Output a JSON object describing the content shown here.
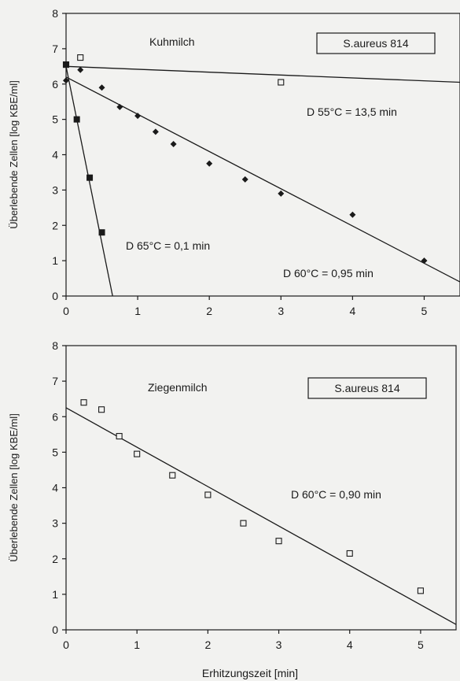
{
  "chart_data": [
    {
      "type": "scatter",
      "panel_label": "Kuhmilch",
      "box_label": "S.aureus 814",
      "xlabel": "",
      "ylabel": "Überlebende Zellen [log KBE/ml]",
      "xlim": [
        0,
        5.5
      ],
      "ylim": [
        0,
        8
      ],
      "xticks": [
        0,
        1,
        2,
        3,
        4,
        5
      ],
      "yticks": [
        0,
        1,
        2,
        3,
        4,
        5,
        6,
        7,
        8
      ],
      "series": [
        {
          "marker": "open-square",
          "points": [
            [
              0,
              6.55
            ],
            [
              0.2,
              6.75
            ],
            [
              3,
              6.05
            ]
          ],
          "line": [
            [
              0,
              6.5
            ],
            [
              5.5,
              6.05
            ]
          ],
          "annotation": "D 55°C = 13,5 min"
        },
        {
          "marker": "filled-diamond",
          "points": [
            [
              0,
              6.1
            ],
            [
              0.2,
              6.4
            ],
            [
              0.5,
              5.9
            ],
            [
              0.75,
              5.35
            ],
            [
              1,
              5.1
            ],
            [
              1.25,
              4.65
            ],
            [
              1.5,
              4.3
            ],
            [
              2,
              3.75
            ],
            [
              2.5,
              3.3
            ],
            [
              3,
              2.9
            ],
            [
              4,
              2.3
            ],
            [
              5,
              1.0
            ]
          ],
          "line": [
            [
              0,
              6.2
            ],
            [
              5.5,
              0.4
            ]
          ],
          "annotation": "D 60°C = 0,95 min"
        },
        {
          "marker": "filled-square",
          "points": [
            [
              0,
              6.55
            ],
            [
              0.15,
              5.0
            ],
            [
              0.33,
              3.35
            ],
            [
              0.5,
              1.8
            ]
          ],
          "line": [
            [
              0,
              6.5
            ],
            [
              0.65,
              0
            ]
          ],
          "annotation": "D 65°C = 0,1 min"
        }
      ]
    },
    {
      "type": "scatter",
      "panel_label": "Ziegenmilch",
      "box_label": "S.aureus 814",
      "xlabel": "Erhitzungszeit [min]",
      "ylabel": "Überlebende Zellen [log KBE/ml]",
      "xlim": [
        0,
        5.5
      ],
      "ylim": [
        0,
        8
      ],
      "xticks": [
        0,
        1,
        2,
        3,
        4,
        5
      ],
      "yticks": [
        0,
        1,
        2,
        3,
        4,
        5,
        6,
        7,
        8
      ],
      "series": [
        {
          "marker": "open-square",
          "points": [
            [
              0.25,
              6.4
            ],
            [
              0.5,
              6.2
            ],
            [
              0.75,
              5.45
            ],
            [
              1,
              4.95
            ],
            [
              1.5,
              4.35
            ],
            [
              2,
              3.8
            ],
            [
              2.5,
              3.0
            ],
            [
              3,
              2.5
            ],
            [
              4,
              2.15
            ],
            [
              5,
              1.1
            ]
          ],
          "line": [
            [
              0,
              6.25
            ],
            [
              5.5,
              0.15
            ]
          ],
          "annotation": "D 60°C = 0,90 min"
        }
      ]
    }
  ]
}
